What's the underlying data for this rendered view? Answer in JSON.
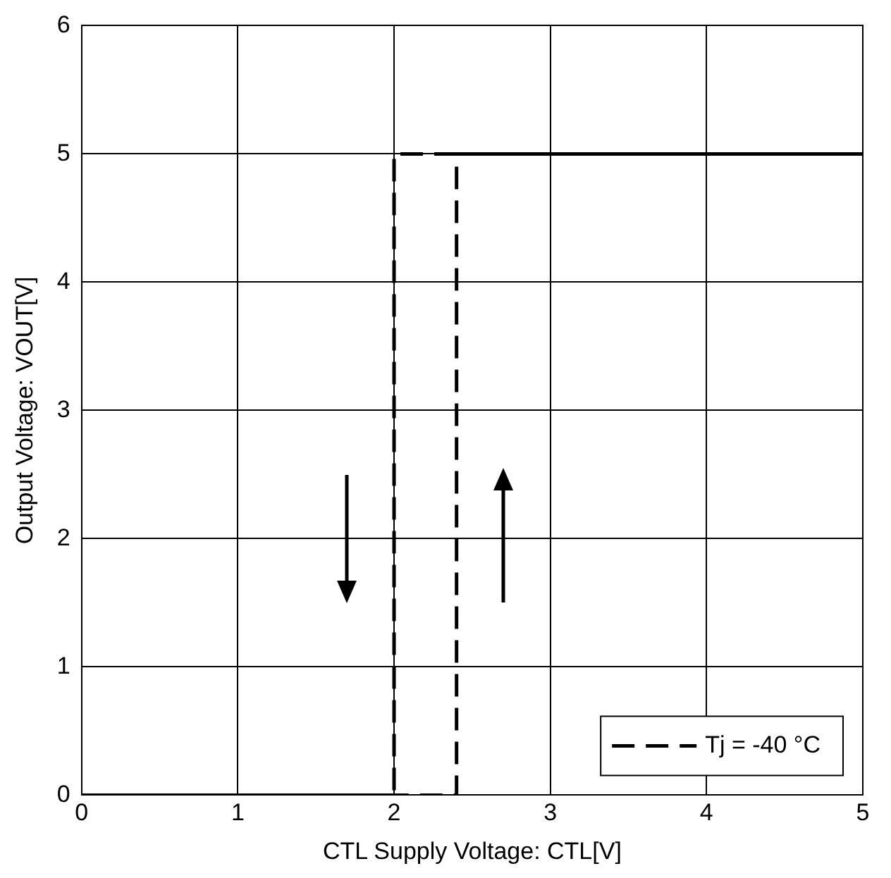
{
  "chart_data": {
    "type": "line",
    "xlabel": "CTL Supply Voltage: CTL[V]",
    "ylabel": "Output Voltage: VOUT[V]",
    "series": [
      {
        "name": "Tj = -40 °C",
        "color": "#000000",
        "x": [
          0,
          2.4,
          2.4,
          5
        ],
        "values": [
          0,
          0,
          5,
          5
        ]
      },
      {
        "color": "#000000",
        "x": [
          5,
          2,
          2,
          0
        ],
        "values": [
          5,
          5,
          0,
          0
        ]
      }
    ],
    "xlim": [
      0,
      5
    ],
    "xticks": [
      0,
      1,
      2,
      3,
      4,
      5
    ],
    "ylim": [
      0,
      6
    ],
    "yticks": [
      0,
      1,
      2,
      3,
      4,
      5,
      6
    ],
    "grid": true,
    "legend": "bottom right",
    "marker": "none",
    "line_style": "dashed"
  }
}
